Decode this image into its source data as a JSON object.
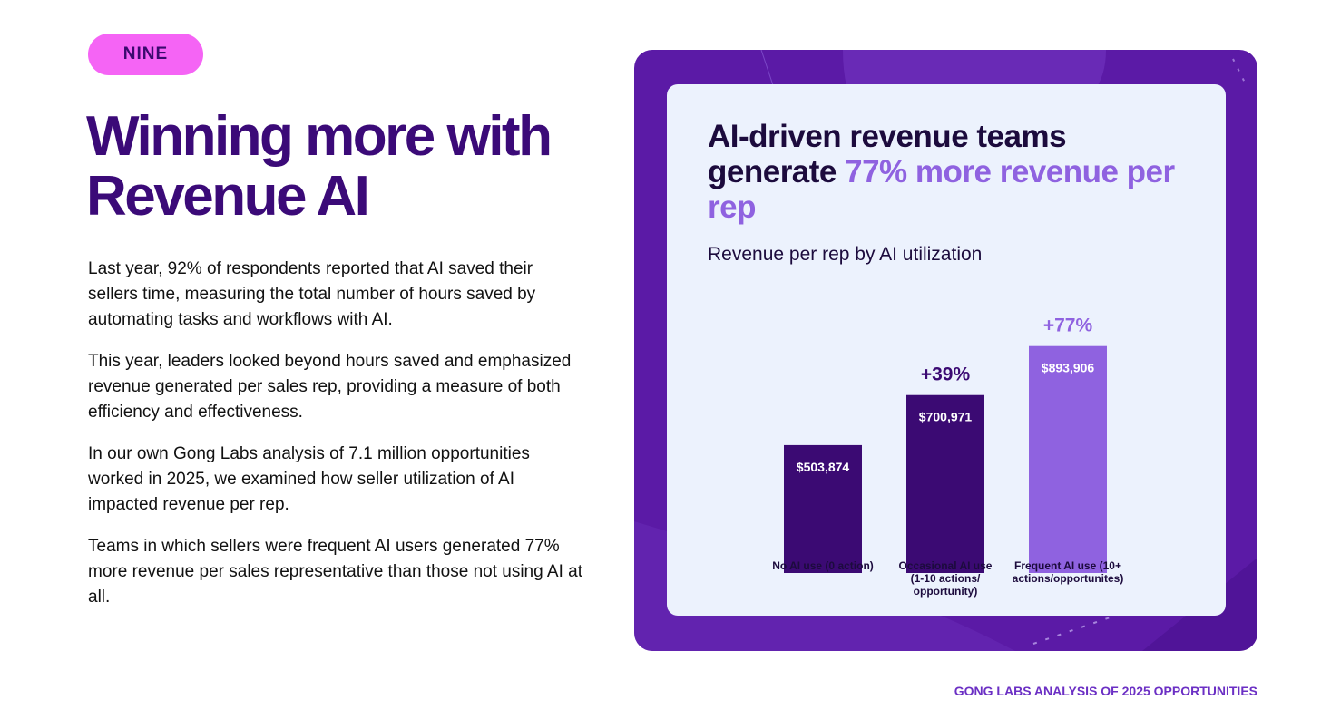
{
  "badge": {
    "label": "NINE"
  },
  "headline": {
    "line1": "Winning more with",
    "line2": "Revenue AI"
  },
  "paragraphs": [
    "Last year, 92% of respondents reported that AI saved their sellers time, measuring the total number of hours saved by automating tasks and workflows with AI.",
    "This year, leaders looked beyond hours saved and emphasized revenue generated per sales rep, providing a measure of both efficiency and effectiveness.",
    "In our own Gong Labs analysis of 7.1 million opportunities worked in 2025, we examined how seller utilization of AI impacted revenue per rep.",
    "Teams in which sellers were frequent AI users generated 77% more revenue per sales representative than those not using AI at all."
  ],
  "card": {
    "title_part1": "AI-driven revenue teams generate ",
    "title_highlight": "77% more revenue per rep"
  },
  "chart_data": {
    "type": "bar",
    "title": "Revenue per rep by AI utilization",
    "categories": [
      [
        "No AI use (0 action)"
      ],
      [
        "Occasional AI use",
        "(1-10 actions/",
        "opportunity)"
      ],
      [
        "Frequent AI use (10+",
        "actions/opportunites)"
      ]
    ],
    "values": [
      503874,
      700971,
      893906
    ],
    "value_labels": [
      "$503,874",
      "$700,971",
      "$893,906"
    ],
    "change_labels": [
      "",
      "+39%",
      "+77%"
    ],
    "bar_colors": [
      "#3b0a73",
      "#3b0a73",
      "#8f62e0"
    ],
    "change_colors": [
      "#3b0a73",
      "#3b0a73",
      "#8f62e0"
    ],
    "ylim": [
      0,
      1000000
    ],
    "xlabel": "",
    "ylabel": "",
    "grid": false
  },
  "footer": {
    "label": "GONG LABS ANALYSIS OF 2025 OPPORTUNITIES"
  },
  "colors": {
    "badge_bg": "#f564f5",
    "headline": "#3b0a78",
    "accent": "#8f62e0",
    "dark": "#1c0b3d",
    "panel_bg": "#5b1aa6",
    "card_bg": "#ecf2fd",
    "footer": "#6b2fc4"
  }
}
